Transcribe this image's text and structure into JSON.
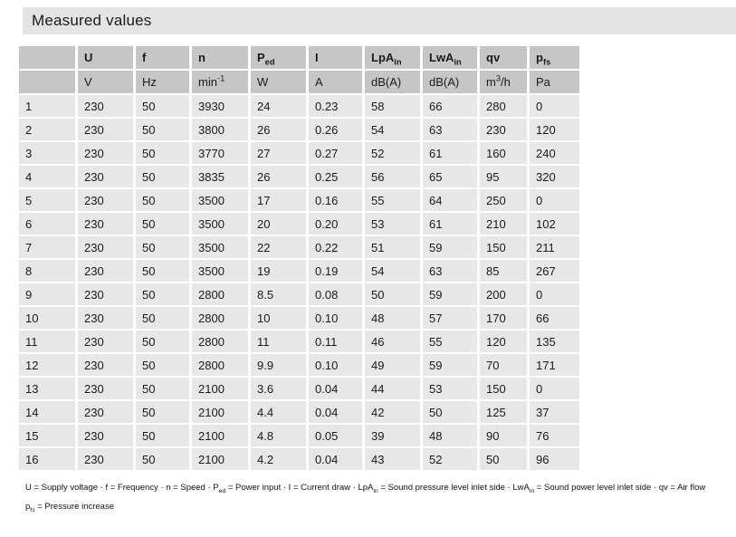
{
  "title": "Measured values",
  "colors": {
    "title_bar_bg": "#e4e4e4",
    "header_cell_bg": "#c6c6c6",
    "data_cell_bg": "#e7e7e7",
    "text": "#1a1a1a"
  },
  "table": {
    "columns": [
      {
        "name": "row",
        "label_parts": [],
        "unit_parts": []
      },
      {
        "name": "U",
        "label_parts": [
          {
            "t": "U"
          }
        ],
        "unit_parts": [
          {
            "t": "V"
          }
        ]
      },
      {
        "name": "f",
        "label_parts": [
          {
            "t": "f"
          }
        ],
        "unit_parts": [
          {
            "t": "Hz"
          }
        ]
      },
      {
        "name": "n",
        "label_parts": [
          {
            "t": "n"
          }
        ],
        "unit_parts": [
          {
            "t": "min"
          },
          {
            "t": "-1",
            "sup": true
          }
        ]
      },
      {
        "name": "Ped",
        "label_parts": [
          {
            "t": "P"
          },
          {
            "t": "ed",
            "sub": true
          }
        ],
        "unit_parts": [
          {
            "t": "W"
          }
        ]
      },
      {
        "name": "I",
        "label_parts": [
          {
            "t": "I"
          }
        ],
        "unit_parts": [
          {
            "t": "A"
          }
        ]
      },
      {
        "name": "LpAin",
        "label_parts": [
          {
            "t": "LpA"
          },
          {
            "t": "in",
            "sub": true
          }
        ],
        "unit_parts": [
          {
            "t": "dB(A)"
          }
        ]
      },
      {
        "name": "LwAin",
        "label_parts": [
          {
            "t": "LwA"
          },
          {
            "t": "in",
            "sub": true
          }
        ],
        "unit_parts": [
          {
            "t": "dB(A)"
          }
        ]
      },
      {
        "name": "qv",
        "label_parts": [
          {
            "t": "qv"
          }
        ],
        "unit_parts": [
          {
            "t": "m"
          },
          {
            "t": "3",
            "sup": true
          },
          {
            "t": "/h"
          }
        ]
      },
      {
        "name": "pfs",
        "label_parts": [
          {
            "t": "p"
          },
          {
            "t": "fs",
            "sub": true
          }
        ],
        "unit_parts": [
          {
            "t": "Pa"
          }
        ]
      }
    ],
    "rows": [
      [
        "1",
        "230",
        "50",
        "3930",
        "24",
        "0.23",
        "58",
        "66",
        "280",
        "0"
      ],
      [
        "2",
        "230",
        "50",
        "3800",
        "26",
        "0.26",
        "54",
        "63",
        "230",
        "120"
      ],
      [
        "3",
        "230",
        "50",
        "3770",
        "27",
        "0.27",
        "52",
        "61",
        "160",
        "240"
      ],
      [
        "4",
        "230",
        "50",
        "3835",
        "26",
        "0.25",
        "56",
        "65",
        "95",
        "320"
      ],
      [
        "5",
        "230",
        "50",
        "3500",
        "17",
        "0.16",
        "55",
        "64",
        "250",
        "0"
      ],
      [
        "6",
        "230",
        "50",
        "3500",
        "20",
        "0.20",
        "53",
        "61",
        "210",
        "102"
      ],
      [
        "7",
        "230",
        "50",
        "3500",
        "22",
        "0.22",
        "51",
        "59",
        "150",
        "211"
      ],
      [
        "8",
        "230",
        "50",
        "3500",
        "19",
        "0.19",
        "54",
        "63",
        "85",
        "267"
      ],
      [
        "9",
        "230",
        "50",
        "2800",
        "8.5",
        "0.08",
        "50",
        "59",
        "200",
        "0"
      ],
      [
        "10",
        "230",
        "50",
        "2800",
        "10",
        "0.10",
        "48",
        "57",
        "170",
        "66"
      ],
      [
        "11",
        "230",
        "50",
        "2800",
        "11",
        "0.11",
        "46",
        "55",
        "120",
        "135"
      ],
      [
        "12",
        "230",
        "50",
        "2800",
        "9.9",
        "0.10",
        "49",
        "59",
        "70",
        "171"
      ],
      [
        "13",
        "230",
        "50",
        "2100",
        "3.6",
        "0.04",
        "44",
        "53",
        "150",
        "0"
      ],
      [
        "14",
        "230",
        "50",
        "2100",
        "4.4",
        "0.04",
        "42",
        "50",
        "125",
        "37"
      ],
      [
        "15",
        "230",
        "50",
        "2100",
        "4.8",
        "0.05",
        "39",
        "48",
        "90",
        "76"
      ],
      [
        "16",
        "230",
        "50",
        "2100",
        "4.2",
        "0.04",
        "43",
        "52",
        "50",
        "96"
      ]
    ]
  },
  "footer": {
    "lines": [
      [
        {
          "t": "U = Supply voltage · f = Frequency · n = Speed · P"
        },
        {
          "t": "ed",
          "sub": true
        },
        {
          "t": " = Power input · I = Current draw · LpA"
        },
        {
          "t": "in",
          "sub": true
        },
        {
          "t": " = Sound pressure level inlet side · LwA"
        },
        {
          "t": "in",
          "sub": true
        },
        {
          "t": " = Sound power level inlet side · qv = Air flow"
        }
      ],
      [
        {
          "t": "p"
        },
        {
          "t": "fs",
          "sub": true
        },
        {
          "t": " = Pressure increase"
        }
      ]
    ]
  }
}
